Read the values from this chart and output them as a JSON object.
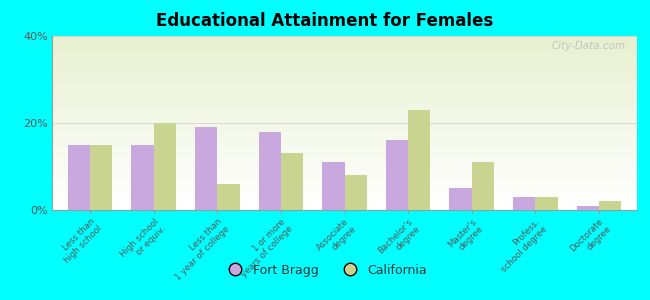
{
  "title": "Educational Attainment for Females",
  "categories": [
    "Less than\nhigh school",
    "High school\nor equiv.",
    "Less than\n1 year of college",
    "1 or more\nyears of college",
    "Associate\ndegree",
    "Bachelor's\ndegree",
    "Master's\ndegree",
    "Profess.\nschool degree",
    "Doctorate\ndegree"
  ],
  "fort_bragg": [
    15,
    15,
    19,
    18,
    11,
    16,
    5,
    3,
    1
  ],
  "california": [
    15,
    20,
    6,
    13,
    8,
    23,
    11,
    3,
    2
  ],
  "fort_bragg_color": "#c9a8e0",
  "california_color": "#c8d490",
  "background_color": "#00ffff",
  "ylim": [
    0,
    40
  ],
  "yticks": [
    0,
    20,
    40
  ],
  "ytick_labels": [
    "0%",
    "20%",
    "40%"
  ],
  "bar_width": 0.35,
  "legend_fort_bragg": "Fort Bragg",
  "legend_california": "California",
  "watermark": "City-Data.com"
}
